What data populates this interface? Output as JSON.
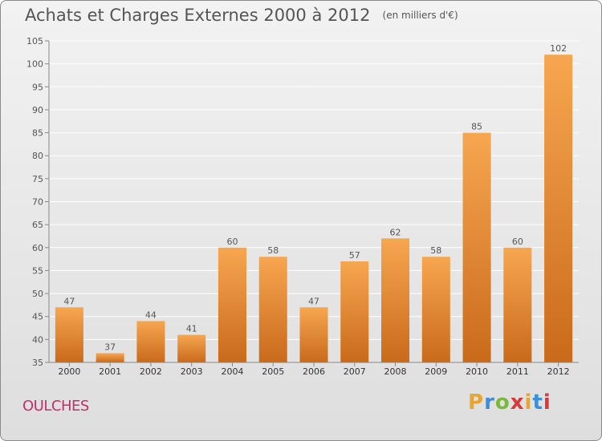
{
  "title": "Achats et Charges Externes 2000 à 2012",
  "unit": "(en milliers d'€)",
  "commune": "OULCHES",
  "logo": {
    "letters": [
      "P",
      "r",
      "o",
      "x",
      "i",
      "t",
      "i"
    ],
    "colors": [
      "#e8a531",
      "#3a8fd6",
      "#7ab93b",
      "#d9383a",
      "#e8a531",
      "#3a8fd6",
      "#d9383a"
    ]
  },
  "colors": {
    "bar_light": "#f7a650",
    "bar_dark": "#c96a1b",
    "commune": "#c0306a",
    "grid": "#ffffff",
    "text": "#555555"
  },
  "chart_data": {
    "type": "bar",
    "categories": [
      "2000",
      "2001",
      "2002",
      "2003",
      "2004",
      "2005",
      "2006",
      "2007",
      "2008",
      "2009",
      "2010",
      "2011",
      "2012"
    ],
    "values": [
      47,
      37,
      44,
      41,
      60,
      58,
      47,
      57,
      62,
      58,
      85,
      60,
      102
    ],
    "title": "Achats et Charges Externes 2000 à 2012",
    "ylim": [
      35,
      105
    ],
    "yticks": [
      35,
      40,
      45,
      50,
      55,
      60,
      65,
      70,
      75,
      80,
      85,
      90,
      95,
      100,
      105
    ],
    "grid": true,
    "data_labels": true
  }
}
